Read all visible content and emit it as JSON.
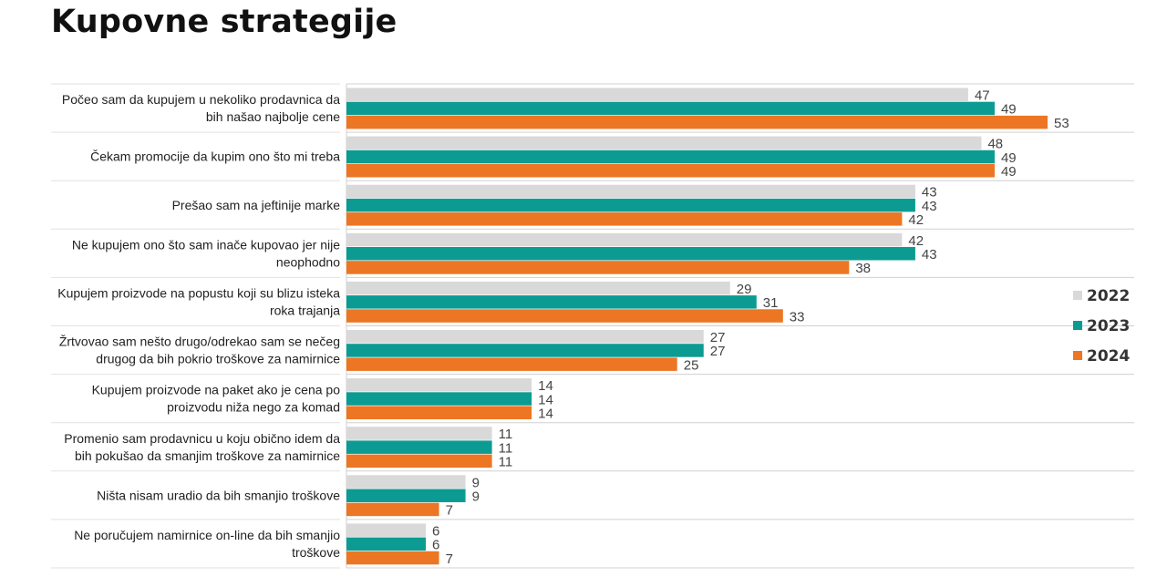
{
  "title": "Kupovne strategije",
  "chart_data": {
    "type": "bar",
    "orientation": "horizontal",
    "xlim": [
      0,
      70
    ],
    "grid": false,
    "legend_position": "right",
    "categories": [
      [
        "Počeo sam da kupujem u nekoliko prodavnica da",
        "bih našao najbolje cene"
      ],
      [
        "Čekam promocije da kupim ono što mi treba"
      ],
      [
        "Prešao sam na jeftinije marke"
      ],
      [
        "Ne kupujem ono što sam inače kupovao jer nije",
        "neophodno"
      ],
      [
        "Kupujem proizvode na popustu koji su blizu isteka",
        "roka trajanja"
      ],
      [
        "Žrtvovao sam nešto drugo/odrekao sam se nečeg",
        "drugog da bih pokrio troškove za namirnice"
      ],
      [
        "Kupujem proizvode na paket ako je cena po",
        "proizvodu niža  nego za komad"
      ],
      [
        "Promenio sam prodavnicu u koju obično idem da",
        "bih pokušao da smanjim troškove za namirnice"
      ],
      [
        "Ništa nisam uradio da bih smanjio troškove"
      ],
      [
        "Ne poručujem namirnice on-line da bih smanjio",
        "troškove"
      ]
    ],
    "series": [
      {
        "name": "2022",
        "color": "#d9d9d9",
        "values": [
          47,
          48,
          43,
          42,
          29,
          27,
          14,
          11,
          9,
          6
        ]
      },
      {
        "name": "2023",
        "color": "#0c9b92",
        "values": [
          49,
          49,
          43,
          43,
          31,
          27,
          14,
          11,
          9,
          6
        ]
      },
      {
        "name": "2024",
        "color": "#ec7623",
        "values": [
          53,
          49,
          42,
          38,
          33,
          25,
          14,
          11,
          7,
          7
        ]
      }
    ]
  }
}
